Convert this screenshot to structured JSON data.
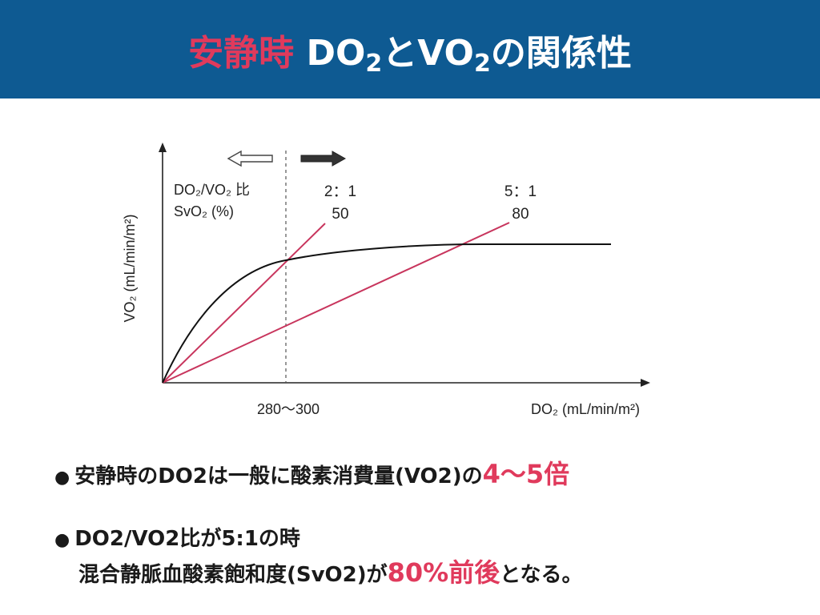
{
  "header": {
    "title_highlight": "安静時",
    "title_parts": [
      "DO",
      "2",
      "と",
      "VO",
      "2",
      "の関係性"
    ]
  },
  "chart_data": {
    "type": "line",
    "xlabel": "DO₂ (mL/min/m²)",
    "ylabel": "VO₂ (mL/min/m²)",
    "threshold_label": "280〜300",
    "legend_ratio_label": "DO₂/VO₂ 比",
    "legend_svo2_label": "SvO₂ (%)",
    "ratio_lines": [
      {
        "ratio": "2：1",
        "svo2": "50",
        "color": "#c8355d"
      },
      {
        "ratio": "5：1",
        "svo2": "80",
        "color": "#c8355d"
      }
    ],
    "curve_color": "#111111"
  },
  "bullets": {
    "b1_marker": "●",
    "b1_text": "安静時のDO2は一般に酸素消費量(VO2)の",
    "b1_emphasis": "4〜5倍",
    "b2_marker": "●",
    "b2_line1": "DO2/VO2比が5:1の時",
    "b2_line2_text": "混合静脈血酸素飽和度(SvO2)が",
    "b2_line2_emphasis": "80%前後",
    "b2_line2_tail": "となる。"
  }
}
